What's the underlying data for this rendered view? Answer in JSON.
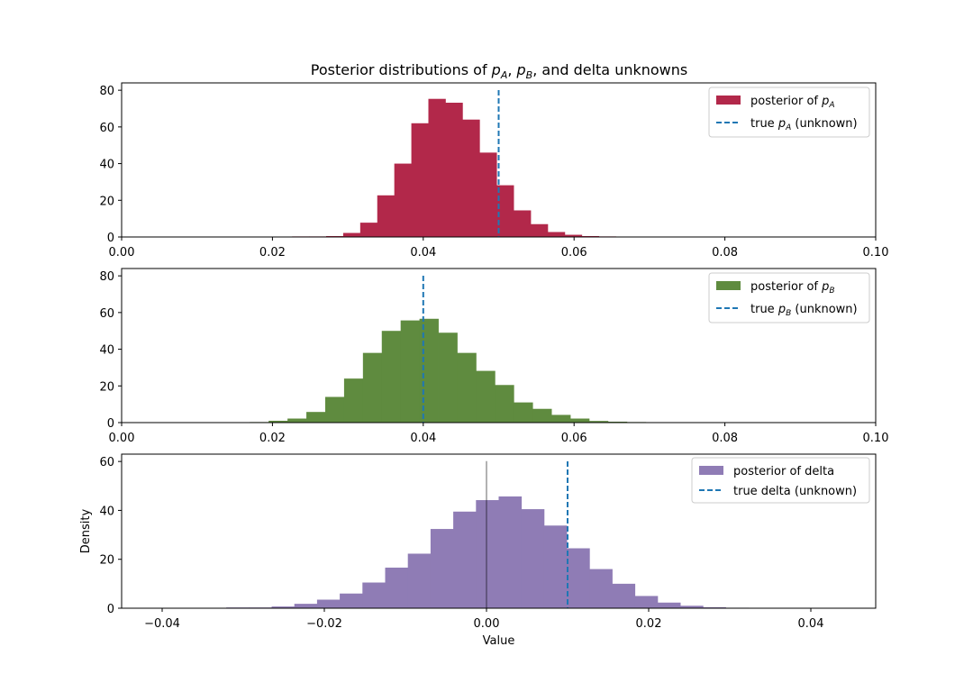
{
  "figure": {
    "title_prefix": "Posterior distributions of ",
    "title_sep1": ", ",
    "title_sep2": ", and delta unknowns"
  },
  "chart_data": [
    {
      "type": "bar",
      "panel": "pA",
      "color": "#b2284a",
      "xlim": [
        0.0,
        0.1
      ],
      "ylim": [
        0,
        84
      ],
      "xticks": [
        0.0,
        0.02,
        0.04,
        0.06,
        0.08,
        0.1
      ],
      "xtick_labels": [
        "0.00",
        "0.02",
        "0.04",
        "0.06",
        "0.08",
        "0.10"
      ],
      "yticks": [
        0,
        20,
        40,
        60,
        80
      ],
      "ytick_labels": [
        "0",
        "20",
        "40",
        "60",
        "80"
      ],
      "bin_start": 0.0226,
      "bin_width": 0.00226,
      "values": [
        0.3,
        0.3,
        0.5,
        2.2,
        7.8,
        22.7,
        40,
        62,
        75.3,
        73.2,
        64,
        46,
        28.2,
        14.5,
        7.0,
        2.7,
        1.2,
        0.5,
        0.3
      ],
      "true_value": 0.05,
      "legend": [
        {
          "kind": "patch",
          "label_prefix": "posterior of ",
          "sym": "p",
          "sub": "A",
          "label_suffix": ""
        },
        {
          "kind": "dash",
          "label_prefix": "true ",
          "sym": "p",
          "sub": "A",
          "label_suffix": " (unknown)"
        }
      ],
      "legend_position": "top-right"
    },
    {
      "type": "bar",
      "panel": "pB",
      "color": "#5f8b3f",
      "xlim": [
        0.0,
        0.1
      ],
      "ylim": [
        0,
        84
      ],
      "xticks": [
        0.0,
        0.02,
        0.04,
        0.06,
        0.08,
        0.1
      ],
      "xtick_labels": [
        "0.00",
        "0.02",
        "0.04",
        "0.06",
        "0.08",
        "0.10"
      ],
      "yticks": [
        0,
        20,
        40,
        60,
        80
      ],
      "ytick_labels": [
        "0",
        "20",
        "40",
        "60",
        "80"
      ],
      "bin_start": 0.017,
      "bin_width": 0.0025,
      "values": [
        0.3,
        1.0,
        2.2,
        5.8,
        14,
        24,
        38,
        50,
        55.7,
        56.6,
        49,
        38,
        28.2,
        20.5,
        11,
        7.5,
        4.2,
        2.2,
        0.9,
        0.5,
        0.3
      ],
      "true_value": 0.04,
      "legend": [
        {
          "kind": "patch",
          "label_prefix": "posterior of ",
          "sym": "p",
          "sub": "B",
          "label_suffix": ""
        },
        {
          "kind": "dash",
          "label_prefix": "true ",
          "sym": "p",
          "sub": "B",
          "label_suffix": " (unknown)"
        }
      ],
      "legend_position": "top-right"
    },
    {
      "type": "bar",
      "panel": "delta",
      "color": "#8f7cb5",
      "xlim": [
        -0.045,
        0.048
      ],
      "ylim": [
        0,
        63
      ],
      "xticks": [
        -0.04,
        -0.02,
        0.0,
        0.02,
        0.04
      ],
      "xtick_labels": [
        "−0.04",
        "−0.02",
        "0.00",
        "0.02",
        "0.04"
      ],
      "yticks": [
        0,
        20,
        40,
        60
      ],
      "ytick_labels": [
        "0",
        "20",
        "40",
        "60"
      ],
      "bin_start": -0.0321,
      "bin_width": 0.0028,
      "values": [
        0.3,
        0.3,
        0.7,
        1.8,
        3.5,
        6.0,
        10.5,
        16.6,
        22.3,
        32.4,
        39.5,
        44.2,
        45.7,
        40.5,
        33.8,
        24.5,
        16,
        10,
        5,
        2.3,
        1,
        0.4,
        0.2
      ],
      "true_value": 0.01,
      "zero_line": 0.0,
      "xlabel": "Value",
      "ylabel": "Density",
      "legend": [
        {
          "kind": "patch",
          "label_prefix": "posterior of delta",
          "sym": "",
          "sub": "",
          "label_suffix": ""
        },
        {
          "kind": "dash",
          "label_prefix": "true delta (unknown)",
          "sym": "",
          "sub": "",
          "label_suffix": ""
        }
      ],
      "legend_position": "top-right"
    }
  ]
}
